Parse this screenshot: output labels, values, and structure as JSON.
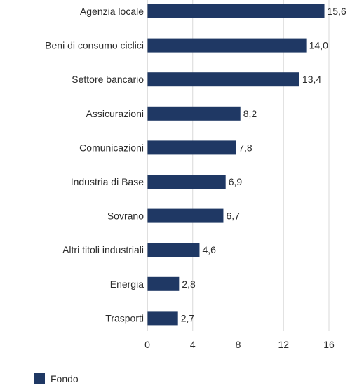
{
  "chart_data": {
    "type": "bar",
    "orientation": "horizontal",
    "categories": [
      "Agenzia locale",
      "Beni di consumo ciclici",
      "Settore bancario",
      "Assicurazioni",
      "Comunicazioni",
      "Industria di Base",
      "Sovrano",
      "Altri titoli industriali",
      "Energia",
      "Trasporti"
    ],
    "series": [
      {
        "name": "Fondo",
        "values": [
          15.6,
          14.0,
          13.4,
          8.2,
          7.8,
          6.9,
          6.7,
          4.6,
          2.8,
          2.7
        ],
        "value_labels": [
          "15,6",
          "14,0",
          "13,4",
          "8,2",
          "7,8",
          "6,9",
          "6,7",
          "4,6",
          "2,8",
          "2,7"
        ]
      }
    ],
    "xlim": [
      0,
      16
    ],
    "xticks": [
      0,
      4,
      8,
      12,
      16
    ],
    "xtick_labels": [
      "0",
      "4",
      "8",
      "12",
      "16"
    ],
    "grid": "vertical",
    "legend_position": "bottom-left"
  },
  "colors": {
    "bar": "#1f3864",
    "grid": "#d9d9d9",
    "text": "#2b2b2b"
  }
}
